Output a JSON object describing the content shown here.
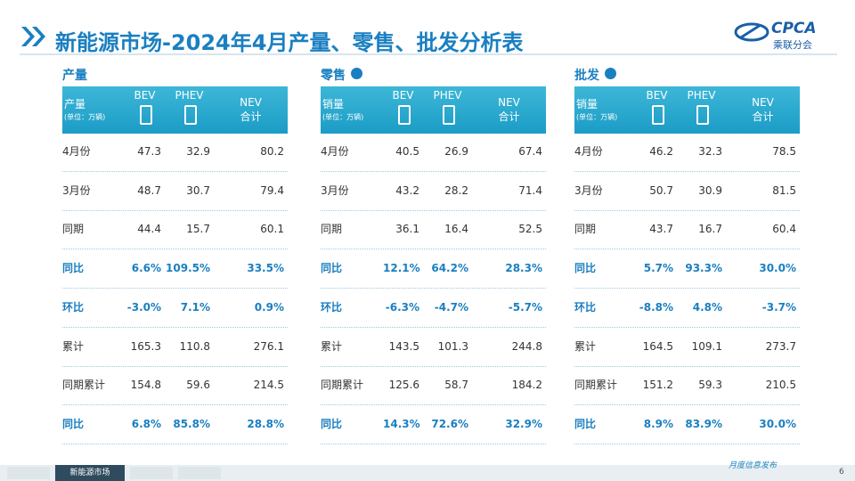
{
  "header": {
    "title": "新能源市场-2024年4月产量、零售、批发分析表",
    "logo_text": "CPCA",
    "logo_sub": "乘联分会"
  },
  "tables": [
    {
      "section": "产量",
      "label": "产量",
      "unit": "(单位：万辆)",
      "cols": [
        "BEV",
        "PHEV"
      ],
      "nev": [
        "NEV",
        "合计"
      ],
      "rows": [
        [
          "4月份",
          "47.3",
          "32.9",
          "80.2"
        ],
        [
          "3月份",
          "48.7",
          "30.7",
          "79.4"
        ],
        [
          "同期",
          "44.4",
          "15.7",
          "60.1"
        ],
        [
          "同比",
          "6.6%",
          "109.5%",
          "33.5%"
        ],
        [
          "环比",
          "-3.0%",
          "7.1%",
          "0.9%"
        ],
        [
          "累计",
          "165.3",
          "110.8",
          "276.1"
        ],
        [
          "同期累计",
          "154.8",
          "59.6",
          "214.5"
        ],
        [
          "同比",
          "6.8%",
          "85.8%",
          "28.8%"
        ]
      ]
    },
    {
      "section": "零售",
      "label": "销量",
      "unit": "(单位：万辆)",
      "cols": [
        "BEV",
        "PHEV"
      ],
      "nev": [
        "NEV",
        "合计"
      ],
      "rows": [
        [
          "4月份",
          "40.5",
          "26.9",
          "67.4"
        ],
        [
          "3月份",
          "43.2",
          "28.2",
          "71.4"
        ],
        [
          "同期",
          "36.1",
          "16.4",
          "52.5"
        ],
        [
          "同比",
          "12.1%",
          "64.2%",
          "28.3%"
        ],
        [
          "环比",
          "-6.3%",
          "-4.7%",
          "-5.7%"
        ],
        [
          "累计",
          "143.5",
          "101.3",
          "244.8"
        ],
        [
          "同期累计",
          "125.6",
          "58.7",
          "184.2"
        ],
        [
          "同比",
          "14.3%",
          "72.6%",
          "32.9%"
        ]
      ]
    },
    {
      "section": "批发",
      "label": "销量",
      "unit": "(单位：万辆)",
      "cols": [
        "BEV",
        "PHEV"
      ],
      "nev": [
        "NEV",
        "合计"
      ],
      "rows": [
        [
          "4月份",
          "46.2",
          "32.3",
          "78.5"
        ],
        [
          "3月份",
          "50.7",
          "30.9",
          "81.5"
        ],
        [
          "同期",
          "43.7",
          "16.7",
          "60.4"
        ],
        [
          "同比",
          "5.7%",
          "93.3%",
          "30.0%"
        ],
        [
          "环比",
          "-8.8%",
          "4.8%",
          "-3.7%"
        ],
        [
          "累计",
          "164.5",
          "109.1",
          "273.7"
        ],
        [
          "同期累计",
          "151.2",
          "59.3",
          "210.5"
        ],
        [
          "同比",
          "8.9%",
          "83.9%",
          "30.0%"
        ]
      ]
    }
  ],
  "footer": {
    "active_tab": "新能源市场",
    "note": "月度信息发布",
    "page": "6"
  }
}
